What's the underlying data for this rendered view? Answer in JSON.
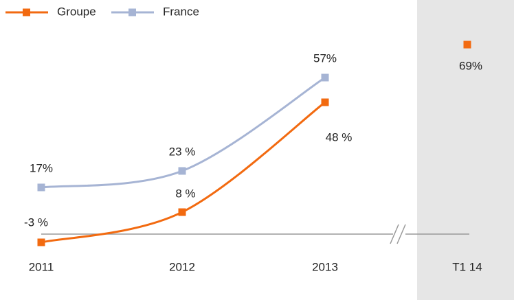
{
  "chart_data": {
    "type": "line",
    "categories": [
      "2011",
      "2012",
      "2013",
      "T1 14"
    ],
    "axis_break_before": "T1 14",
    "series": [
      {
        "name": "Groupe",
        "color": "#f26a10",
        "values": [
          -3,
          8,
          48,
          69
        ],
        "value_labels": [
          "-3 %",
          "8 %",
          "48 %",
          "69%"
        ]
      },
      {
        "name": "France",
        "color": "#a6b4d4",
        "values": [
          17,
          23,
          57,
          null
        ],
        "value_labels": [
          "17%",
          "23 %",
          "57%",
          null
        ]
      }
    ],
    "ylim": [
      -10,
      70
    ]
  }
}
